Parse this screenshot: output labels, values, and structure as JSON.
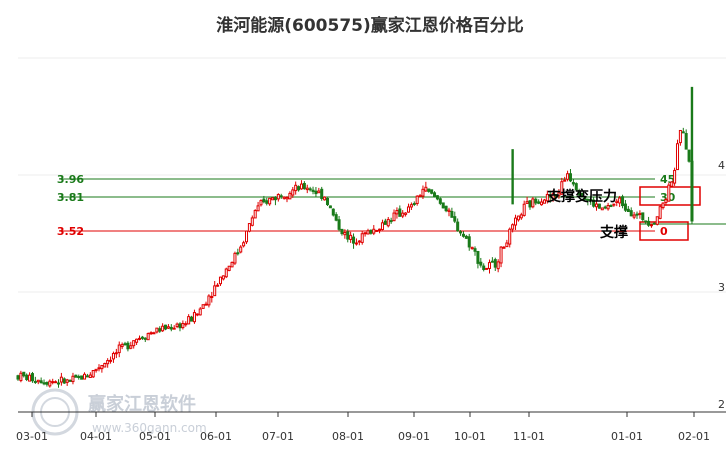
{
  "chart_data": {
    "type": "candlestick",
    "title": "淮河能源(600575)赢家江恩价格百分比",
    "colors": {
      "up": "#e00000",
      "down": "#1a7a1a",
      "resistance": "#1a7a1a",
      "support": "#e00000"
    },
    "x_ticks": [
      "03-01",
      "04-01",
      "05-01",
      "06-01",
      "07-01",
      "08-01",
      "09-01",
      "10-01",
      "11-01",
      "01-01",
      "02-01"
    ],
    "right_axis_ticks": [
      "4",
      "3",
      "2"
    ],
    "levels": [
      {
        "price": "3.96",
        "percent": "45",
        "color": "#1a7a1a"
      },
      {
        "price": "3.81",
        "percent": "30",
        "color": "#1a7a1a"
      },
      {
        "price": "3.52",
        "percent": "0",
        "color": "#e00000"
      }
    ],
    "annotations": [
      "支撑变压力",
      "支撑"
    ],
    "price_path": [
      {
        "t": 0,
        "p": 2.29
      },
      {
        "t": 10,
        "p": 2.25
      },
      {
        "t": 18,
        "p": 2.24
      },
      {
        "t": 25,
        "p": 2.31
      },
      {
        "t": 32,
        "p": 2.45
      },
      {
        "t": 40,
        "p": 2.6
      },
      {
        "t": 48,
        "p": 2.68
      },
      {
        "t": 58,
        "p": 2.74
      },
      {
        "t": 62,
        "p": 2.82
      },
      {
        "t": 68,
        "p": 3.05
      },
      {
        "t": 72,
        "p": 3.2
      },
      {
        "t": 76,
        "p": 3.35
      },
      {
        "t": 78,
        "p": 3.45
      },
      {
        "t": 82,
        "p": 3.7
      },
      {
        "t": 86,
        "p": 3.78
      },
      {
        "t": 92,
        "p": 3.85
      },
      {
        "t": 100,
        "p": 3.9
      },
      {
        "t": 106,
        "p": 3.82
      },
      {
        "t": 110,
        "p": 3.6
      },
      {
        "t": 114,
        "p": 3.45
      },
      {
        "t": 118,
        "p": 3.47
      },
      {
        "t": 124,
        "p": 3.55
      },
      {
        "t": 130,
        "p": 3.65
      },
      {
        "t": 136,
        "p": 3.72
      },
      {
        "t": 140,
        "p": 3.88
      },
      {
        "t": 146,
        "p": 3.78
      },
      {
        "t": 150,
        "p": 3.62
      },
      {
        "t": 156,
        "p": 3.42
      },
      {
        "t": 161,
        "p": 3.2
      },
      {
        "t": 165,
        "p": 3.25
      },
      {
        "t": 170,
        "p": 3.5
      },
      {
        "t": 175,
        "p": 3.72
      },
      {
        "t": 180,
        "p": 3.8
      },
      {
        "t": 186,
        "p": 3.82
      },
      {
        "t": 190,
        "p": 4.02
      },
      {
        "t": 196,
        "p": 3.8
      },
      {
        "t": 202,
        "p": 3.7
      },
      {
        "t": 208,
        "p": 3.78
      },
      {
        "t": 214,
        "p": 3.65
      },
      {
        "t": 220,
        "p": 3.6
      },
      {
        "t": 224,
        "p": 3.82
      },
      {
        "t": 227,
        "p": 4.05
      },
      {
        "t": 229,
        "p": 4.4
      },
      {
        "t": 231,
        "p": 4.25
      },
      {
        "t": 232,
        "p": 4.1
      },
      {
        "t": 233,
        "p": 3.62
      }
    ],
    "spikes": [
      {
        "t": 171,
        "low": 3.75,
        "high": 4.22,
        "dir": "down"
      },
      {
        "t": 233,
        "low": 3.62,
        "high": 4.75,
        "dir": "down"
      }
    ]
  }
}
